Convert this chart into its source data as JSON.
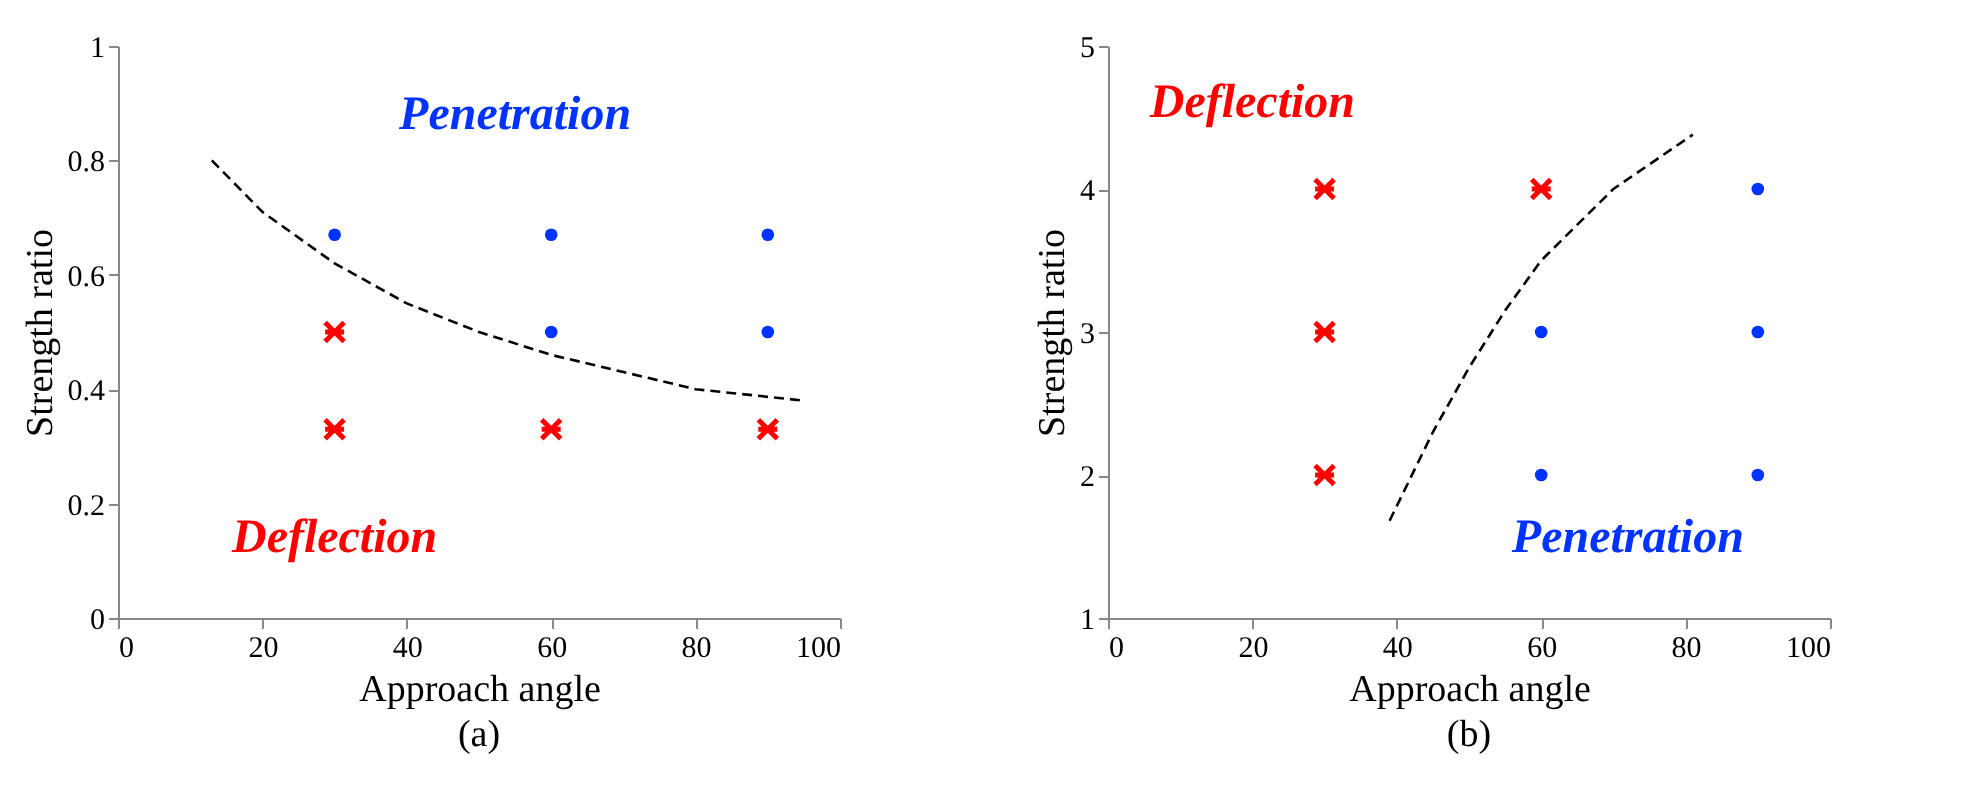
{
  "chart_data": [
    {
      "type": "scatter",
      "title": "(a)",
      "xlabel": "Approach angle",
      "ylabel": "Strength ratio",
      "xlim": [
        0,
        100
      ],
      "xticks": [
        0,
        20,
        40,
        60,
        80,
        100
      ],
      "ylim": [
        0,
        1
      ],
      "yticks": [
        0,
        0.2,
        0.4,
        0.6,
        0.8,
        1
      ],
      "grid": false,
      "series": [
        {
          "type": "scatter",
          "marker": "circle",
          "color": "#0033ff",
          "x": [
            30,
            60,
            90,
            60,
            90
          ],
          "values": [
            0.67,
            0.67,
            0.67,
            0.5,
            0.5
          ]
        },
        {
          "type": "scatter",
          "marker": "cross",
          "color": "#ff0000",
          "x": [
            30,
            30,
            60,
            90
          ],
          "values": [
            0.5,
            0.33,
            0.33,
            0.33
          ]
        },
        {
          "type": "line",
          "marker": "none",
          "line_style": "dashed",
          "color": "#000000",
          "x": [
            13,
            20,
            30,
            40,
            50,
            60,
            70,
            80,
            95
          ],
          "values": [
            0.8,
            0.71,
            0.62,
            0.55,
            0.5,
            0.46,
            0.43,
            0.4,
            0.38
          ]
        }
      ],
      "annotations": [
        "Penetration",
        "Deflection"
      ]
    },
    {
      "type": "scatter",
      "title": "(b)",
      "xlabel": "Approach angle",
      "ylabel": "Strength ratio",
      "xlim": [
        0,
        100
      ],
      "xticks": [
        0,
        20,
        40,
        60,
        80,
        100
      ],
      "ylim": [
        1,
        5
      ],
      "yticks": [
        1,
        2,
        3,
        4,
        5
      ],
      "grid": false,
      "series": [
        {
          "type": "scatter",
          "marker": "circle",
          "color": "#0033ff",
          "x": [
            90,
            60,
            90,
            60,
            90
          ],
          "values": [
            4,
            3,
            3,
            2,
            2
          ]
        },
        {
          "type": "scatter",
          "marker": "cross",
          "color": "#ff0000",
          "x": [
            30,
            30,
            30,
            60
          ],
          "values": [
            4,
            3,
            2,
            4
          ]
        },
        {
          "type": "line",
          "marker": "none",
          "line_style": "dashed",
          "color": "#000000",
          "x": [
            39,
            45,
            50,
            55,
            60,
            70,
            81
          ],
          "values": [
            1.68,
            2.3,
            2.75,
            3.15,
            3.5,
            4.0,
            4.38
          ]
        }
      ],
      "annotations": [
        "Deflection",
        "Penetration"
      ]
    }
  ]
}
